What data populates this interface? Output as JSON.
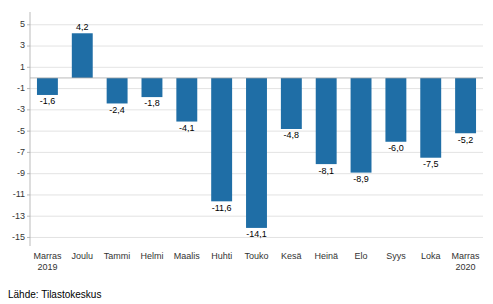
{
  "chart_data": {
    "type": "bar",
    "categories": [
      "Marras\n2019",
      "Joulu",
      "Tammi",
      "Helmi",
      "Maalis",
      "Huhti",
      "Touko",
      "Kesä",
      "Heinä",
      "Elo",
      "Syys",
      "Loka",
      "Marras\n2020"
    ],
    "values": [
      -1.6,
      4.2,
      -2.4,
      -1.8,
      -4.1,
      -11.6,
      -14.1,
      -4.8,
      -8.1,
      -8.9,
      -6.0,
      -7.5,
      -5.2
    ],
    "value_labels": [
      "-1,6",
      "4,2",
      "-2,4",
      "-1,8",
      "-4,1",
      "-11,6",
      "-14,1",
      "-4,8",
      "-8,1",
      "-8,9",
      "-6,0",
      "-7,5",
      "-5,2"
    ],
    "data_labels": true,
    "color": "#1F6EA6",
    "ylim": [
      -15.8,
      6.2
    ],
    "yticks": [
      -15,
      -13,
      -11,
      -9,
      -7,
      -5,
      -3,
      -1,
      1,
      3,
      5
    ],
    "grid": true,
    "source": "Lähde: Tilastokeskus"
  }
}
